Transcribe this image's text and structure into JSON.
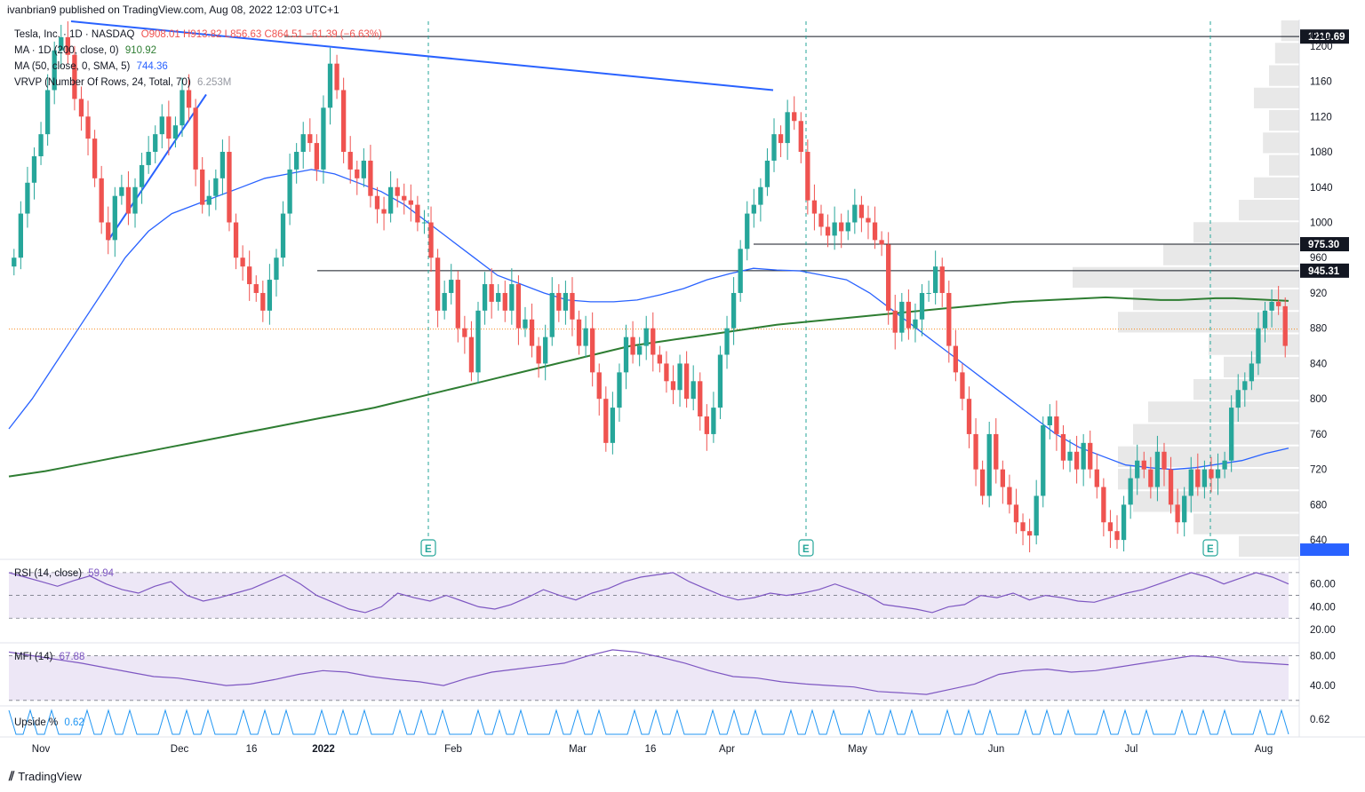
{
  "header": {
    "publisher": "ivanbrian9 published on TradingView.com, Aug 08, 2022 12:03 UTC+1"
  },
  "footer": {
    "brand": "TradingView"
  },
  "colors": {
    "up": "#26a69a",
    "down": "#ef5350",
    "ma200": "#2e7d32",
    "ma50": "#2962ff",
    "rsi": "#7e57c2",
    "upside": "#2196f3"
  },
  "legend": {
    "symbol": "Tesla, Inc. · 1D · NASDAQ",
    "ohlc": "O908.01 H913.82 L856.63 C864.51 −61.39 (−6.63%)",
    "ma200_label": "MA · 1D (200, close, 0)",
    "ma200_value": "910.92",
    "ma50_label": "MA (50, close, 0, SMA, 5)",
    "ma50_value": "744.36",
    "vrvp_label": "VRVP (Number Of Rows, 24, Total, 70)",
    "vrvp_value": "6.253M",
    "rsi_label": "RSI (14, close)",
    "rsi_value": "59.94",
    "mfi_label": "MFI (14)",
    "mfi_value": "67.88",
    "upside_label": "Upside %",
    "upside_value": "0.62"
  },
  "chart_data": {
    "type": "candlestick",
    "currency": "USD",
    "ylim": [
      620,
      1230
    ],
    "y_ticks": [
      640,
      680,
      720,
      760,
      800,
      840,
      880,
      920,
      960,
      1000,
      1040,
      1080,
      1120,
      1160,
      1200
    ],
    "price_labels": [
      "1210.69",
      "975.30",
      "945.31"
    ],
    "x_labels": [
      "Nov",
      "Dec",
      "16",
      "2022",
      "Feb",
      "Mar",
      "16",
      "Apr",
      "May",
      "Jun",
      "Jul",
      "Aug"
    ],
    "horizontal_levels": [
      1210.69,
      975.3,
      945.31
    ],
    "earnings_marker": "E",
    "closes": [
      960,
      1010,
      1045,
      1075,
      1100,
      1150,
      1195,
      1210,
      1190,
      1140,
      1120,
      1095,
      1050,
      1000,
      980,
      1030,
      1040,
      1010,
      1040,
      1065,
      1080,
      1100,
      1120,
      1095,
      1110,
      1150,
      1130,
      1060,
      1020,
      1030,
      1050,
      1080,
      1000,
      960,
      950,
      930,
      920,
      900,
      935,
      960,
      1010,
      1060,
      1080,
      1100,
      1090,
      1060,
      1130,
      1180,
      1150,
      1080,
      1060,
      1050,
      1070,
      1030,
      1015,
      1010,
      1040,
      1030,
      1025,
      1020,
      1000,
      1000,
      960,
      900,
      920,
      935,
      880,
      870,
      830,
      900,
      930,
      910,
      920,
      900,
      930,
      880,
      890,
      860,
      840,
      870,
      920,
      900,
      920,
      890,
      860,
      880,
      830,
      800,
      750,
      790,
      830,
      870,
      850,
      860,
      880,
      850,
      840,
      820,
      810,
      840,
      800,
      820,
      780,
      760,
      790,
      850,
      880,
      920,
      970,
      1010,
      1020,
      1040,
      1070,
      1100,
      1090,
      1125,
      1115,
      1080,
      1025,
      1010,
      995,
      985,
      1000,
      990,
      1000,
      1020,
      1005,
      1000,
      980,
      975,
      900,
      875,
      910,
      880,
      890,
      920,
      920,
      950,
      920,
      860,
      830,
      800,
      760,
      720,
      690,
      760,
      720,
      700,
      680,
      660,
      650,
      645,
      690,
      770,
      780,
      760,
      730,
      740,
      720,
      750,
      720,
      700,
      660,
      650,
      640,
      680,
      710,
      730,
      720,
      700,
      740,
      720,
      680,
      660,
      690,
      720,
      700,
      720,
      710,
      720,
      730,
      790,
      810,
      820,
      840,
      880,
      900,
      910,
      905,
      860
    ],
    "ma200": [
      712,
      715,
      718,
      722,
      726,
      730,
      734,
      738,
      742,
      746,
      750,
      754,
      758,
      762,
      766,
      770,
      774,
      778,
      782,
      786,
      790,
      795,
      800,
      805,
      810,
      815,
      820,
      825,
      830,
      835,
      840,
      845,
      850,
      855,
      860,
      863,
      866,
      869,
      872,
      875,
      878,
      881,
      884,
      886,
      888,
      890,
      892,
      894,
      896,
      898,
      900,
      902,
      904,
      906,
      908,
      910,
      911,
      912,
      913,
      914,
      915,
      914,
      913,
      912,
      912,
      913,
      914,
      914,
      913,
      912,
      911
    ],
    "ma50": [
      766,
      800,
      840,
      880,
      920,
      960,
      990,
      1010,
      1020,
      1030,
      1040,
      1050,
      1055,
      1060,
      1055,
      1045,
      1035,
      1020,
      1000,
      980,
      960,
      940,
      930,
      920,
      912,
      910,
      910,
      912,
      918,
      925,
      935,
      942,
      948,
      946,
      945,
      940,
      935,
      920,
      900,
      880,
      860,
      840,
      820,
      800,
      780,
      760,
      745,
      735,
      725,
      722,
      720,
      722,
      726,
      730,
      738,
      744
    ],
    "rsi": [
      70,
      66,
      62,
      58,
      63,
      67,
      60,
      55,
      52,
      58,
      62,
      50,
      45,
      48,
      52,
      56,
      62,
      68,
      60,
      50,
      44,
      38,
      35,
      40,
      52,
      48,
      45,
      50,
      45,
      40,
      38,
      42,
      48,
      55,
      50,
      46,
      52,
      56,
      62,
      66,
      68,
      70,
      62,
      56,
      50,
      46,
      48,
      52,
      50,
      52,
      55,
      60,
      55,
      50,
      42,
      40,
      38,
      35,
      40,
      42,
      50,
      48,
      52,
      46,
      50,
      48,
      45,
      44,
      48,
      52,
      55,
      60,
      65,
      70,
      66,
      60,
      65,
      70,
      66,
      60
    ],
    "mfi": [
      85,
      80,
      75,
      70,
      64,
      58,
      52,
      50,
      45,
      40,
      42,
      48,
      55,
      60,
      58,
      52,
      48,
      45,
      40,
      50,
      58,
      62,
      66,
      70,
      80,
      88,
      85,
      78,
      70,
      60,
      52,
      50,
      45,
      42,
      40,
      38,
      32,
      30,
      28,
      35,
      42,
      55,
      60,
      62,
      58,
      60,
      65,
      70,
      75,
      80,
      78,
      72,
      70,
      68
    ],
    "upside": [
      0.62
    ]
  }
}
